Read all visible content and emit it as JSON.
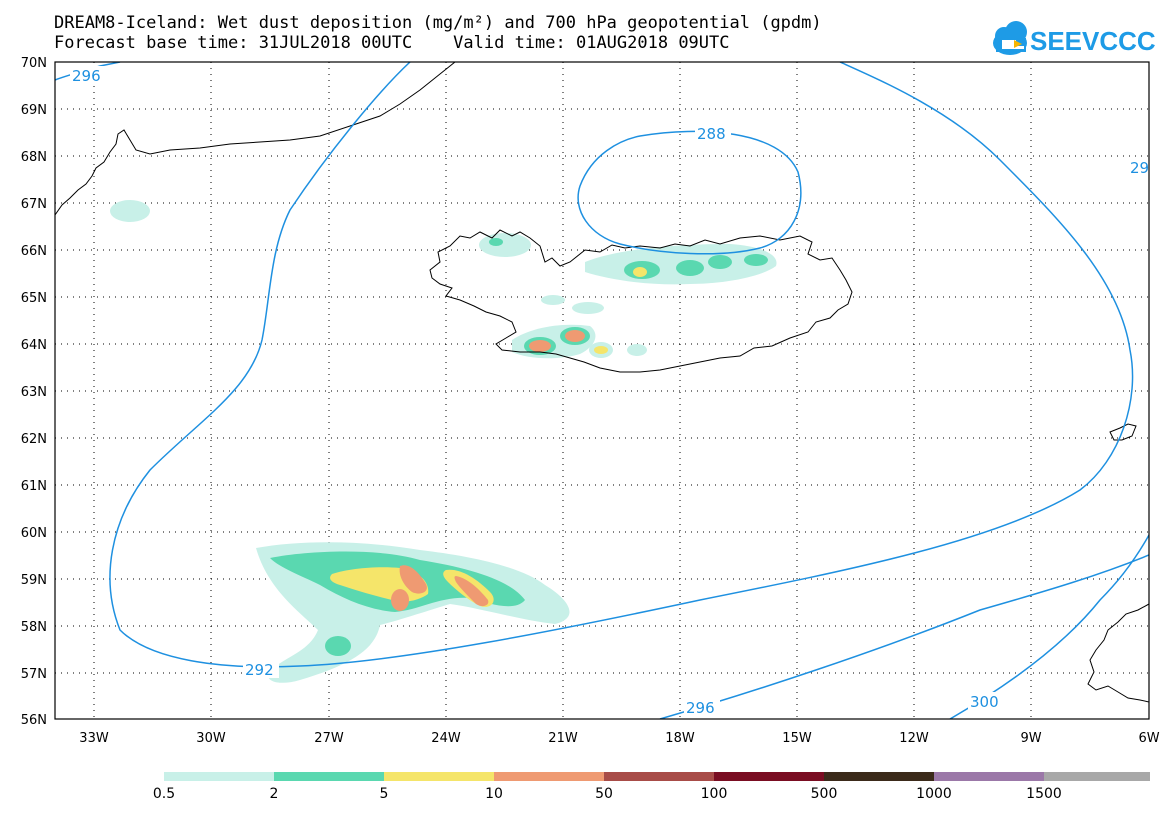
{
  "title": {
    "line1": "DREAM8-Iceland: Wet dust deposition (mg/m²) and 700 hPa geopotential (gpdm)",
    "line2": "Forecast base time: 31JUL2018 00UTC    Valid time: 01AUG2018 09UTC"
  },
  "logo": {
    "text": "SEEVCCC",
    "icon": "cloud-icon",
    "color": "#1e9be6"
  },
  "map": {
    "lat_labels": [
      "70N",
      "69N",
      "68N",
      "67N",
      "66N",
      "65N",
      "64N",
      "63N",
      "62N",
      "61N",
      "60N",
      "59N",
      "58N",
      "57N",
      "56N"
    ],
    "lon_labels": [
      "33W",
      "30W",
      "27W",
      "24W",
      "21W",
      "18W",
      "15W",
      "12W",
      "9W",
      "6W"
    ]
  },
  "contours": {
    "color": "#1e90e0",
    "labels": [
      "296",
      "288",
      "29",
      "292",
      "296",
      "300"
    ]
  },
  "colorbar": {
    "labels": [
      "0.5",
      "2",
      "5",
      "10",
      "50",
      "100",
      "500",
      "1000",
      "1500"
    ],
    "colors": [
      "#c8f0e8",
      "#5ad8b0",
      "#f5e56a",
      "#ef9a72",
      "#a84c48",
      "#7a0d22",
      "#3b2a1a",
      "#9b78a8",
      "#a8a8a8"
    ]
  }
}
